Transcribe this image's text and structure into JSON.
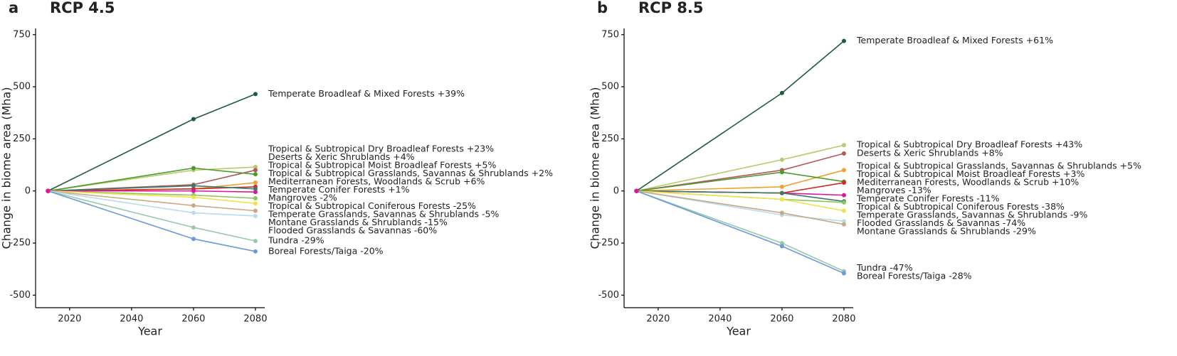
{
  "chart_data": [
    {
      "type": "line",
      "panel_label": "a",
      "title": "RCP 4.5",
      "xlabel": "Year",
      "ylabel": "Change in biome area (Mha)",
      "x": [
        2013,
        2060,
        2080
      ],
      "xlim": [
        2009,
        2083
      ],
      "xticks": [
        2020,
        2040,
        2060,
        2080
      ],
      "ylim": [
        -560,
        780
      ],
      "yticks": [
        -500,
        -250,
        0,
        250,
        500,
        750
      ],
      "grid": false,
      "series": [
        {
          "name": "Temperate Broadleaf & Mixed Forests +39%",
          "color": "#1f5c3c",
          "values": [
            0,
            345,
            465
          ]
        },
        {
          "name": "Tropical & Subtropical Dry Broadleaf Forests +23%",
          "color": "#b9c96b",
          "values": [
            0,
            100,
            115
          ]
        },
        {
          "name": "Deserts & Xeric Shrublands +4%",
          "color": "#b3575f",
          "values": [
            0,
            30,
            100
          ]
        },
        {
          "name": "Tropical & Subtropical Moist Broadleaf Forests +5%",
          "color": "#4c9a2c",
          "values": [
            0,
            110,
            80
          ]
        },
        {
          "name": "Tropical & Subtropical Grasslands, Savannas & Shrublands +2%",
          "color": "#eea232",
          "values": [
            0,
            10,
            40
          ]
        },
        {
          "name": "Mediterranean Forests, Woodlands & Scrub +6%",
          "color": "#d62728",
          "values": [
            0,
            10,
            20
          ]
        },
        {
          "name": "Temperate Conifer Forests +1%",
          "color": "#3b7b6b",
          "values": [
            0,
            25,
            10
          ]
        },
        {
          "name": "Mangroves  -2%",
          "color": "#d41c9b",
          "values": [
            0,
            0,
            -5
          ]
        },
        {
          "name": "Tropical & Subtropical Coniferous Forests -25%",
          "color": "#8cc65c",
          "values": [
            0,
            -20,
            -35
          ]
        },
        {
          "name": "Temperate Grasslands, Savannas & Shrublands -5%",
          "color": "#f2e14c",
          "values": [
            0,
            -30,
            -60
          ]
        },
        {
          "name": "Montane Grasslands & Shrublands -15%",
          "color": "#c8a984",
          "values": [
            0,
            -70,
            -95
          ]
        },
        {
          "name": "Flooded Grasslands & Savannas -60%",
          "color": "#b7dbef",
          "values": [
            0,
            -105,
            -120
          ]
        },
        {
          "name": "Tundra -29%",
          "color": "#98c9a9",
          "values": [
            0,
            -175,
            -240
          ]
        },
        {
          "name": "Boreal Forests/Taiga -20%",
          "color": "#6b9bd9",
          "values": [
            0,
            -230,
            -290
          ]
        }
      ]
    },
    {
      "type": "line",
      "panel_label": "b",
      "title": "RCP 8.5",
      "xlabel": "Year",
      "ylabel": "Change in biome area (Mha)",
      "x": [
        2013,
        2060,
        2080
      ],
      "xlim": [
        2009,
        2083
      ],
      "xticks": [
        2020,
        2040,
        2060,
        2080
      ],
      "ylim": [
        -560,
        780
      ],
      "yticks": [
        -500,
        -250,
        0,
        250,
        500,
        750
      ],
      "grid": false,
      "series": [
        {
          "name": "Temperate Broadleaf & Mixed Forests +61%",
          "color": "#1f5c3c",
          "values": [
            0,
            470,
            720
          ]
        },
        {
          "name": "Tropical & Subtropical Dry Broadleaf Forests +43%",
          "color": "#b9c96b",
          "values": [
            0,
            150,
            220
          ]
        },
        {
          "name": "Deserts & Xeric Shrublands +8%",
          "color": "#b3575f",
          "values": [
            0,
            100,
            180
          ]
        },
        {
          "name": "Tropical & Subtropical Grasslands, Savannas & Shrublands +5%",
          "color": "#eea232",
          "values": [
            0,
            20,
            100
          ]
        },
        {
          "name": "Tropical & Subtropical Moist Broadleaf Forests +3%",
          "color": "#4c9a2c",
          "values": [
            0,
            90,
            45
          ]
        },
        {
          "name": "Mediterranean Forests, Woodlands & Scrub +10%",
          "color": "#d62728",
          "values": [
            0,
            -10,
            40
          ]
        },
        {
          "name": "Mangroves -13%",
          "color": "#d41c9b",
          "values": [
            0,
            -10,
            -20
          ]
        },
        {
          "name": "Temperate Conifer Forests -11%",
          "color": "#3b7b6b",
          "values": [
            0,
            -10,
            -50
          ]
        },
        {
          "name": "Tropical & Subtropical Coniferous Forests -38%",
          "color": "#8cc65c",
          "values": [
            0,
            -40,
            -55
          ]
        },
        {
          "name": "Temperate Grasslands, Savannas & Shrublands -9%",
          "color": "#f2e14c",
          "values": [
            0,
            -40,
            -95
          ]
        },
        {
          "name": "Flooded Grasslands & Savannas -74%",
          "color": "#b7dbef",
          "values": [
            0,
            -115,
            -145
          ]
        },
        {
          "name": "Montane Grasslands & Shrublands -29%",
          "color": "#c8a984",
          "values": [
            0,
            -105,
            -160
          ]
        },
        {
          "name": "Tundra  -47%",
          "color": "#98c9a9",
          "values": [
            0,
            -250,
            -385
          ]
        },
        {
          "name": "Boreal Forests/Taiga -28%",
          "color": "#6b9bd9",
          "values": [
            0,
            -265,
            -395
          ]
        }
      ]
    }
  ]
}
